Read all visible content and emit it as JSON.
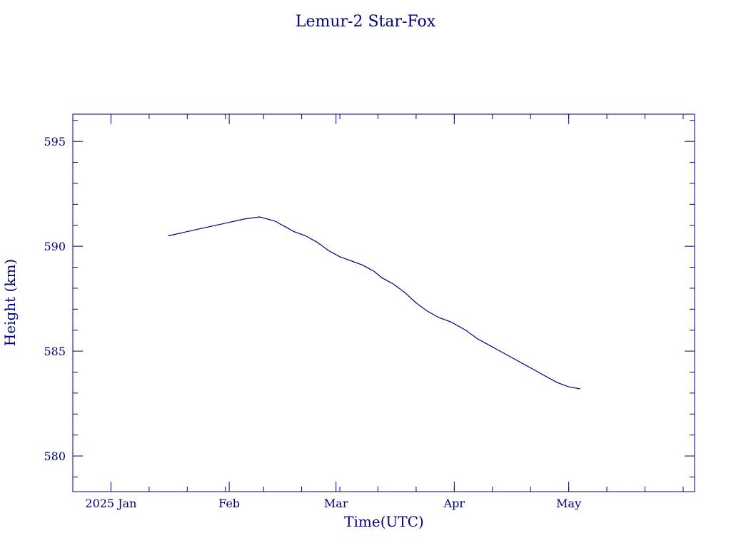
{
  "colors": {
    "foreground": "#000080",
    "background": "#ffffff"
  },
  "chart_data": {
    "type": "line",
    "title": "Lemur-2 Star-Fox",
    "xlabel": "Time(UTC)",
    "ylabel": "Height (km)",
    "x_is_date": true,
    "xlim": [
      "2024-12-22",
      "2025-06-03"
    ],
    "ylim": [
      578.3,
      596.3
    ],
    "x_ticks": [
      {
        "value": "2025-01-01",
        "label": "2025 Jan"
      },
      {
        "value": "2025-02-01",
        "label": "Feb"
      },
      {
        "value": "2025-03-01",
        "label": "Mar"
      },
      {
        "value": "2025-04-01",
        "label": "Apr"
      },
      {
        "value": "2025-05-01",
        "label": "May"
      }
    ],
    "y_ticks": [
      580,
      585,
      590,
      595
    ],
    "grid": false,
    "series": [
      {
        "color": "#000080",
        "x": [
          "2025-01-16",
          "2025-01-21",
          "2025-01-26",
          "2025-01-31",
          "2025-02-05",
          "2025-02-09",
          "2025-02-13",
          "2025-02-16",
          "2025-02-18",
          "2025-02-21",
          "2025-02-24",
          "2025-02-27",
          "2025-03-02",
          "2025-03-05",
          "2025-03-08",
          "2025-03-11",
          "2025-03-13",
          "2025-03-16",
          "2025-03-19",
          "2025-03-22",
          "2025-03-25",
          "2025-03-28",
          "2025-03-31",
          "2025-04-04",
          "2025-04-07",
          "2025-04-10",
          "2025-04-13",
          "2025-04-16",
          "2025-04-19",
          "2025-04-22",
          "2025-04-25",
          "2025-04-28",
          "2025-05-01",
          "2025-05-04"
        ],
        "y": [
          590.5,
          590.7,
          590.9,
          591.1,
          591.3,
          591.4,
          591.2,
          590.9,
          590.7,
          590.5,
          590.2,
          589.8,
          589.5,
          589.3,
          589.1,
          588.8,
          588.5,
          588.2,
          587.8,
          587.3,
          586.9,
          586.6,
          586.4,
          586.0,
          585.6,
          585.3,
          585.0,
          584.7,
          584.4,
          584.1,
          583.8,
          583.5,
          583.3,
          583.2
        ]
      }
    ]
  }
}
